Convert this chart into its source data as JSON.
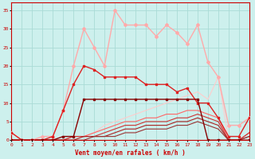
{
  "xlabel": "Vent moyen/en rafales ( km/h )",
  "xlim": [
    0,
    23
  ],
  "ylim": [
    0,
    37
  ],
  "yticks": [
    0,
    5,
    10,
    15,
    20,
    25,
    30,
    35
  ],
  "xticks": [
    0,
    1,
    2,
    3,
    4,
    5,
    6,
    7,
    8,
    9,
    10,
    11,
    12,
    13,
    14,
    15,
    16,
    17,
    18,
    19,
    20,
    21,
    22,
    23
  ],
  "bg_color": "#cdf0ed",
  "grid_color": "#aadbd6",
  "series": [
    {
      "x": [
        0,
        1,
        2,
        3,
        4,
        5,
        6,
        7,
        8,
        9,
        10,
        11,
        12,
        13,
        14,
        15,
        16,
        17,
        18,
        19,
        20,
        21,
        22,
        23
      ],
      "y": [
        2,
        0,
        0,
        1,
        1,
        8,
        20,
        30,
        25,
        20,
        35,
        31,
        31,
        31,
        28,
        31,
        29,
        26,
        31,
        21,
        17,
        4,
        4,
        6
      ],
      "color": "#ffaaaa",
      "lw": 1.0,
      "marker": "D",
      "ms": 2.0,
      "zorder": 3
    },
    {
      "x": [
        0,
        1,
        2,
        3,
        4,
        5,
        6,
        7,
        8,
        9,
        10,
        11,
        12,
        13,
        14,
        15,
        16,
        17,
        18,
        19,
        20,
        21,
        22,
        23
      ],
      "y": [
        2,
        0,
        0,
        0,
        1,
        8,
        15,
        20,
        19,
        17,
        17,
        17,
        17,
        15,
        15,
        15,
        13,
        14,
        10,
        10,
        6,
        1,
        1,
        6
      ],
      "color": "#dd2222",
      "lw": 1.0,
      "marker": "s",
      "ms": 2.0,
      "zorder": 3
    },
    {
      "x": [
        0,
        1,
        2,
        3,
        4,
        5,
        6,
        7,
        8,
        9,
        10,
        11,
        12,
        13,
        14,
        15,
        16,
        17,
        18,
        19,
        20,
        21,
        22,
        23
      ],
      "y": [
        0,
        0,
        0,
        0,
        0,
        1,
        1,
        11,
        11,
        11,
        11,
        11,
        11,
        11,
        11,
        11,
        11,
        11,
        11,
        0,
        0,
        0,
        0,
        0
      ],
      "color": "#880000",
      "lw": 1.0,
      "marker": "s",
      "ms": 2.0,
      "zorder": 3
    },
    {
      "x": [
        0,
        1,
        2,
        3,
        4,
        5,
        6,
        7,
        8,
        9,
        10,
        11,
        12,
        13,
        14,
        15,
        16,
        17,
        18,
        19,
        20,
        21,
        22,
        23
      ],
      "y": [
        0,
        0,
        0,
        0,
        0,
        0,
        0,
        1,
        2,
        4,
        5,
        6,
        7,
        8,
        9,
        10,
        11,
        12,
        13,
        11,
        17,
        0,
        0,
        0
      ],
      "color": "#ffcccc",
      "lw": 0.8,
      "marker": null,
      "ms": 0,
      "zorder": 2
    },
    {
      "x": [
        0,
        1,
        2,
        3,
        4,
        5,
        6,
        7,
        8,
        9,
        10,
        11,
        12,
        13,
        14,
        15,
        16,
        17,
        18,
        19,
        20,
        21,
        22,
        23
      ],
      "y": [
        0,
        0,
        0,
        0,
        0,
        0,
        1,
        1,
        2,
        3,
        4,
        5,
        5,
        6,
        6,
        7,
        7,
        8,
        8,
        7,
        6,
        0,
        0,
        2
      ],
      "color": "#ff6666",
      "lw": 0.8,
      "marker": null,
      "ms": 0,
      "zorder": 2
    },
    {
      "x": [
        0,
        1,
        2,
        3,
        4,
        5,
        6,
        7,
        8,
        9,
        10,
        11,
        12,
        13,
        14,
        15,
        16,
        17,
        18,
        19,
        20,
        21,
        22,
        23
      ],
      "y": [
        0,
        0,
        0,
        0,
        0,
        0,
        1,
        1,
        1,
        2,
        3,
        4,
        4,
        5,
        5,
        5,
        6,
        6,
        7,
        6,
        5,
        0,
        0,
        2
      ],
      "color": "#cc3333",
      "lw": 0.8,
      "marker": null,
      "ms": 0,
      "zorder": 2
    },
    {
      "x": [
        0,
        1,
        2,
        3,
        4,
        5,
        6,
        7,
        8,
        9,
        10,
        11,
        12,
        13,
        14,
        15,
        16,
        17,
        18,
        19,
        20,
        21,
        22,
        23
      ],
      "y": [
        0,
        0,
        0,
        0,
        0,
        0,
        0,
        1,
        1,
        1,
        2,
        3,
        3,
        4,
        4,
        4,
        5,
        5,
        6,
        5,
        4,
        0,
        0,
        1
      ],
      "color": "#aa2222",
      "lw": 0.8,
      "marker": null,
      "ms": 0,
      "zorder": 2
    },
    {
      "x": [
        0,
        1,
        2,
        3,
        4,
        5,
        6,
        7,
        8,
        9,
        10,
        11,
        12,
        13,
        14,
        15,
        16,
        17,
        18,
        19,
        20,
        21,
        22,
        23
      ],
      "y": [
        0,
        0,
        0,
        0,
        0,
        0,
        0,
        0,
        1,
        1,
        1,
        2,
        2,
        3,
        3,
        3,
        4,
        4,
        5,
        4,
        3,
        0,
        0,
        1
      ],
      "color": "#993333",
      "lw": 0.8,
      "marker": null,
      "ms": 0,
      "zorder": 2
    }
  ]
}
